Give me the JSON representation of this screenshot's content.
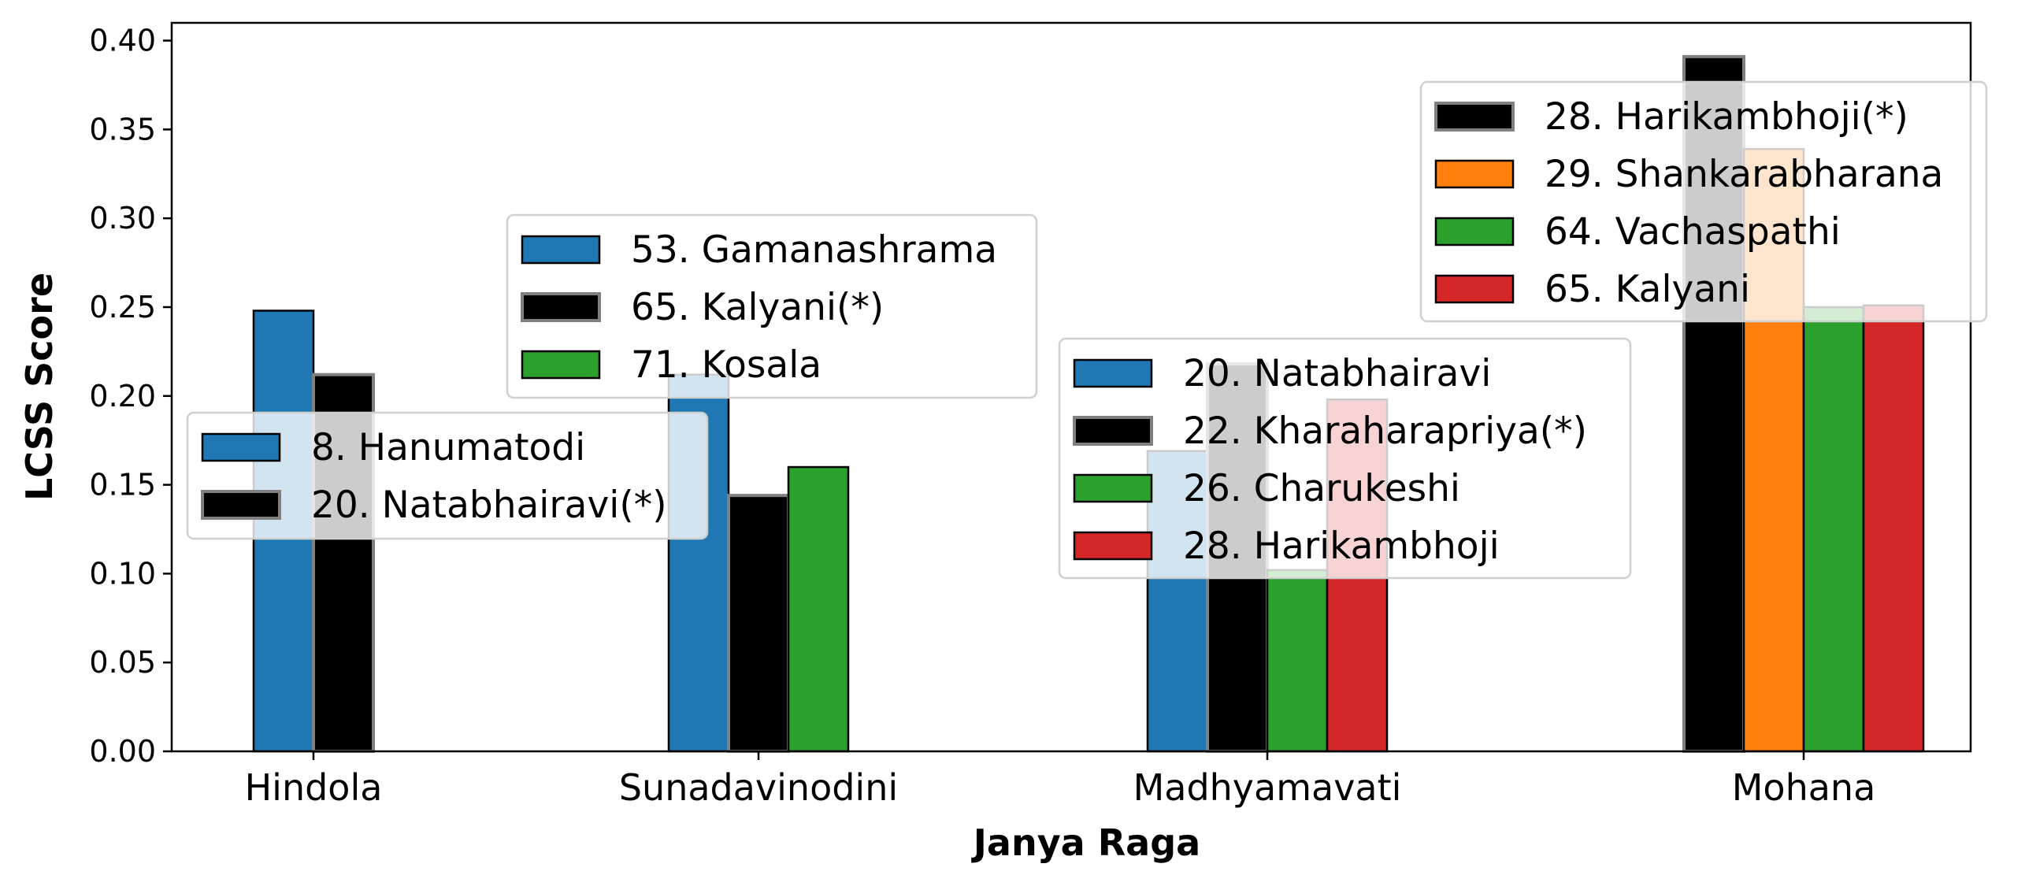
{
  "chart_data": {
    "type": "bar",
    "title": "",
    "xlabel": "Janya Raga",
    "ylabel": "LCSS Score",
    "ylim": [
      0,
      0.41
    ],
    "yticks": [
      "0.00",
      "0.05",
      "0.10",
      "0.15",
      "0.20",
      "0.25",
      "0.30",
      "0.35",
      "0.40"
    ],
    "grid": false,
    "colors": {
      "blue": "#1f77b4",
      "black": "#000000",
      "orange": "#ff7f0e",
      "green": "#2ca02c",
      "red": "#d62728"
    },
    "groups": [
      {
        "category": "Hindola",
        "legend_placement": "left-middle",
        "series": [
          {
            "name": "8. Hanumatodi",
            "value": 0.248,
            "color": "#1f77b4",
            "highlight": false
          },
          {
            "name": "20. Natabhairavi(*)",
            "value": 0.212,
            "color": "#000000",
            "highlight": true
          }
        ]
      },
      {
        "category": "Sunadavinodini",
        "legend_placement": "upper-center",
        "series": [
          {
            "name": "53. Gamanashrama",
            "value": 0.212,
            "color": "#1f77b4",
            "highlight": false
          },
          {
            "name": "65. Kalyani(*)",
            "value": 0.144,
            "color": "#000000",
            "highlight": true
          },
          {
            "name": "71. Kosala",
            "value": 0.16,
            "color": "#2ca02c",
            "highlight": false
          }
        ]
      },
      {
        "category": "Madhyamavati",
        "legend_placement": "center",
        "series": [
          {
            "name": "20. Natabhairavi",
            "value": 0.169,
            "color": "#1f77b4",
            "highlight": false
          },
          {
            "name": "22. Kharaharapriya(*)",
            "value": 0.218,
            "color": "#000000",
            "highlight": true
          },
          {
            "name": "26. Charukeshi",
            "value": 0.102,
            "color": "#2ca02c",
            "highlight": false
          },
          {
            "name": "28. Harikambhoji",
            "value": 0.198,
            "color": "#d62728",
            "highlight": false
          }
        ]
      },
      {
        "category": "Mohana",
        "legend_placement": "upper-right",
        "series": [
          {
            "name": "28. Harikambhoji(*)",
            "value": 0.391,
            "color": "#000000",
            "highlight": true
          },
          {
            "name": "29. Shankarabharana",
            "value": 0.339,
            "color": "#ff7f0e",
            "highlight": false
          },
          {
            "name": "64. Vachaspathi",
            "value": 0.25,
            "color": "#2ca02c",
            "highlight": false
          },
          {
            "name": "65. Kalyani",
            "value": 0.251,
            "color": "#d62728",
            "highlight": false
          }
        ]
      }
    ]
  }
}
